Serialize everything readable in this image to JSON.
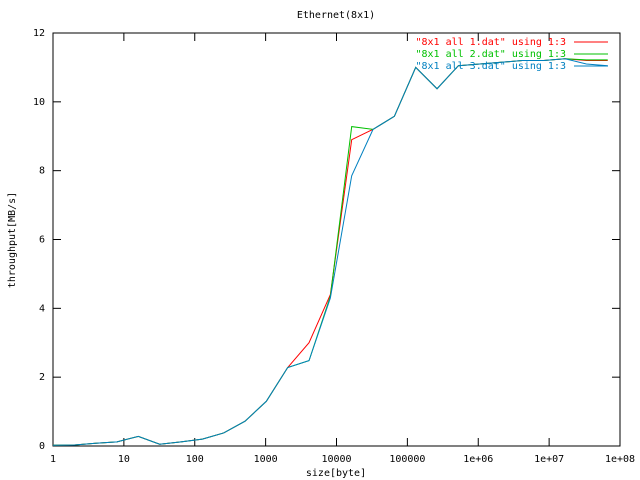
{
  "chart_data": {
    "type": "line",
    "title": "Ethernet(8x1)",
    "x_label": "size[byte]",
    "y_label": "throughput[MB/s]",
    "x": [
      1,
      2,
      4,
      8,
      16,
      32,
      64,
      128,
      256,
      512,
      1024,
      2048,
      4096,
      8192,
      16384,
      32768,
      65536,
      131072,
      262144,
      524288,
      1048576,
      2097152,
      4194304,
      8388608,
      16777216,
      33554432,
      67108864
    ],
    "series": [
      {
        "name": "\"8x1 all 1.dat\" using 1:3",
        "color": "#ff0000",
        "values": [
          0.02,
          0.03,
          0.08,
          0.12,
          0.28,
          0.05,
          0.12,
          0.2,
          0.38,
          0.72,
          1.3,
          2.28,
          3.0,
          4.4,
          8.9,
          9.2,
          9.58,
          11.0,
          10.38,
          11.05,
          11.1,
          11.15,
          11.2,
          11.2,
          11.25,
          11.2,
          11.2
        ]
      },
      {
        "name": "\"8x1 all 2.dat\" using 1:3",
        "color": "#00c000",
        "values": [
          0.02,
          0.03,
          0.08,
          0.12,
          0.28,
          0.05,
          0.12,
          0.2,
          0.38,
          0.72,
          1.3,
          2.28,
          2.48,
          4.35,
          9.28,
          9.2,
          9.58,
          11.0,
          10.38,
          11.05,
          11.1,
          11.15,
          11.2,
          11.2,
          11.25,
          11.22,
          11.22
        ]
      },
      {
        "name": "\"8x1 all 3.dat\" using 1:3",
        "color": "#0080c0",
        "values": [
          0.02,
          0.03,
          0.08,
          0.12,
          0.28,
          0.05,
          0.12,
          0.2,
          0.38,
          0.72,
          1.3,
          2.28,
          2.48,
          4.3,
          7.85,
          9.2,
          9.58,
          11.0,
          10.38,
          11.05,
          11.1,
          11.15,
          11.2,
          11.2,
          11.25,
          11.1,
          11.05
        ]
      }
    ],
    "xlog": true,
    "xlim": [
      1,
      100000000
    ],
    "xticks": [
      1,
      10,
      100,
      1000,
      10000,
      100000,
      {
        "value": 1000000,
        "label": "1e+06"
      },
      {
        "value": 10000000,
        "label": "1e+07"
      },
      {
        "value": 100000000,
        "label": "1e+08"
      }
    ],
    "ylim": [
      0,
      12
    ],
    "yticks": [
      0,
      2,
      4,
      6,
      8,
      10,
      12
    ],
    "legend": "upper right"
  }
}
